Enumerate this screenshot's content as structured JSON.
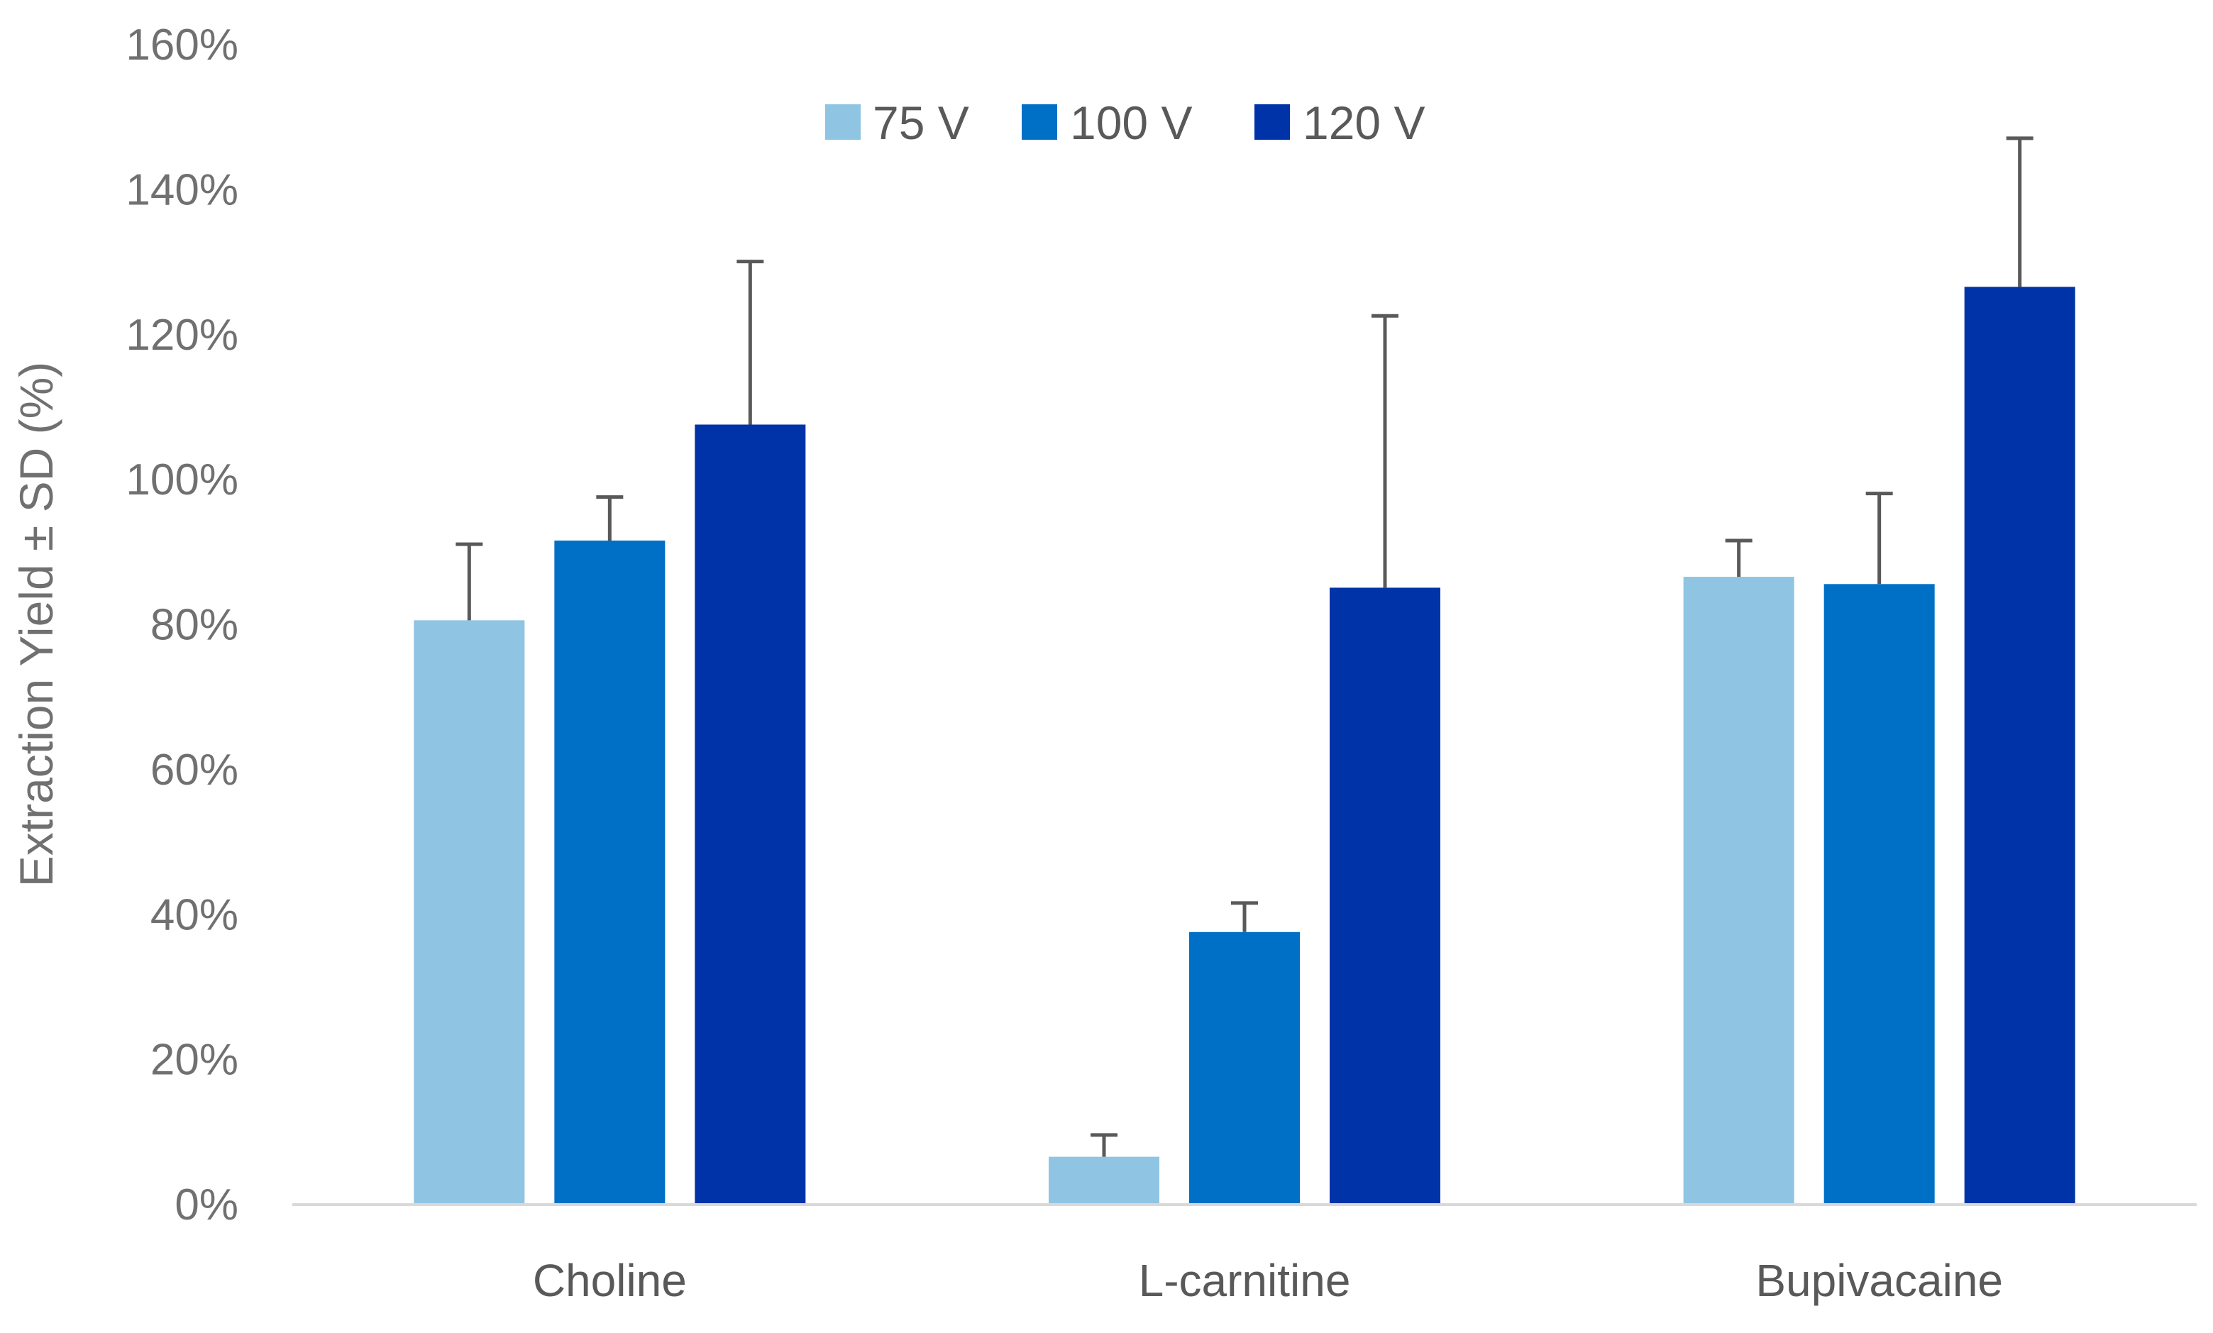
{
  "chart_data": {
    "type": "bar",
    "title": "",
    "xlabel": "",
    "ylabel": "Extraction Yield ± SD (%)",
    "ylim": [
      0,
      160
    ],
    "yticks": [
      0,
      20,
      40,
      60,
      80,
      100,
      120,
      140,
      160
    ],
    "ytick_labels": [
      "0%",
      "20%",
      "40%",
      "60%",
      "80%",
      "100%",
      "120%",
      "140%",
      "160%"
    ],
    "categories": [
      "Choline",
      "L-carnitine",
      "Bupivacaine"
    ],
    "series": [
      {
        "name": "75 V",
        "color": "#8FC4E3",
        "values": [
          80.5,
          6.5,
          86.5
        ],
        "errors": [
          10.5,
          3.0,
          5.0
        ]
      },
      {
        "name": "100 V",
        "color": "#0070C6",
        "values": [
          91.5,
          37.5,
          85.5
        ],
        "errors": [
          6.0,
          4.0,
          12.5
        ]
      },
      {
        "name": "120 V",
        "color": "#0033A8",
        "values": [
          107.5,
          85.0,
          126.5
        ],
        "errors": [
          22.5,
          37.5,
          20.5
        ]
      }
    ],
    "legend_position": "top-center",
    "grid": false,
    "error_bar_color": "#595959",
    "axis_color": "#D9D9D9"
  }
}
